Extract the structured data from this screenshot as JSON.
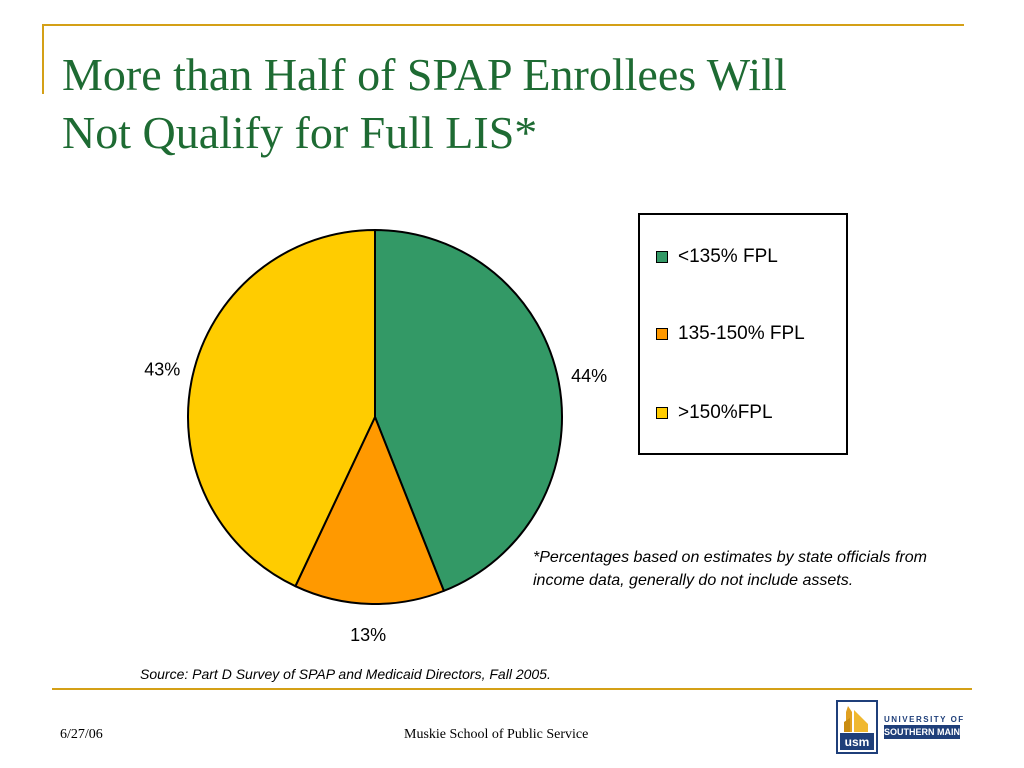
{
  "title": {
    "line1": "More than Half of SPAP Enrollees Will",
    "line2": "Not Qualify for Full LIS*"
  },
  "chart_data": {
    "type": "pie",
    "categories": [
      "<135% FPL",
      "135-150% FPL",
      ">150%FPL"
    ],
    "values": [
      44,
      13,
      43
    ],
    "data_labels": [
      "44%",
      "13%",
      "43%"
    ],
    "colors": [
      "#339966",
      "#ff9900",
      "#ffcc00"
    ],
    "start_angle": "12 o'clock",
    "direction": "clockwise",
    "legend_position": "right"
  },
  "footnote": "*Percentages based on estimates by state officials from income data, generally do not include assets.",
  "source": "Source: Part  D Survey of SPAP and Medicaid Directors, Fall 2005.",
  "footer": {
    "date": "6/27/06",
    "center": "Muskie School of Public Service"
  },
  "logo": {
    "monogram": "usm",
    "line1": "UNIVERSITY OF",
    "line2": "SOUTHERN MAINE"
  }
}
